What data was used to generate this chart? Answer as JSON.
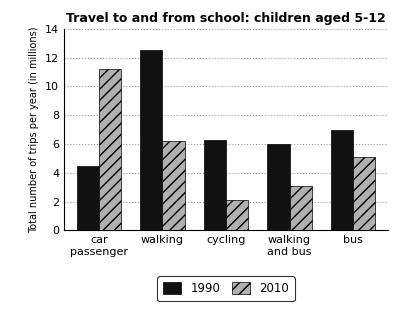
{
  "title": "Travel to and from school: children aged 5-12",
  "categories": [
    "car\npassenger",
    "walking",
    "cycling",
    "walking\nand bus",
    "bus"
  ],
  "values_1990": [
    4.5,
    12.5,
    6.3,
    6.0,
    7.0
  ],
  "values_2010": [
    11.2,
    6.2,
    2.1,
    3.1,
    5.1
  ],
  "ylabel": "Total number of trips per year (in millions)",
  "ylim": [
    0,
    14
  ],
  "yticks": [
    0,
    2,
    4,
    6,
    8,
    10,
    12,
    14
  ],
  "legend_labels": [
    "1990",
    "2010"
  ],
  "color_1990": "#111111",
  "color_2010_face": "#b0b0b0",
  "hatch_2010": "///",
  "bar_width": 0.35,
  "grid_color": "#999999",
  "background_color": "#ffffff",
  "title_fontsize": 9,
  "label_fontsize": 7,
  "tick_fontsize": 8
}
